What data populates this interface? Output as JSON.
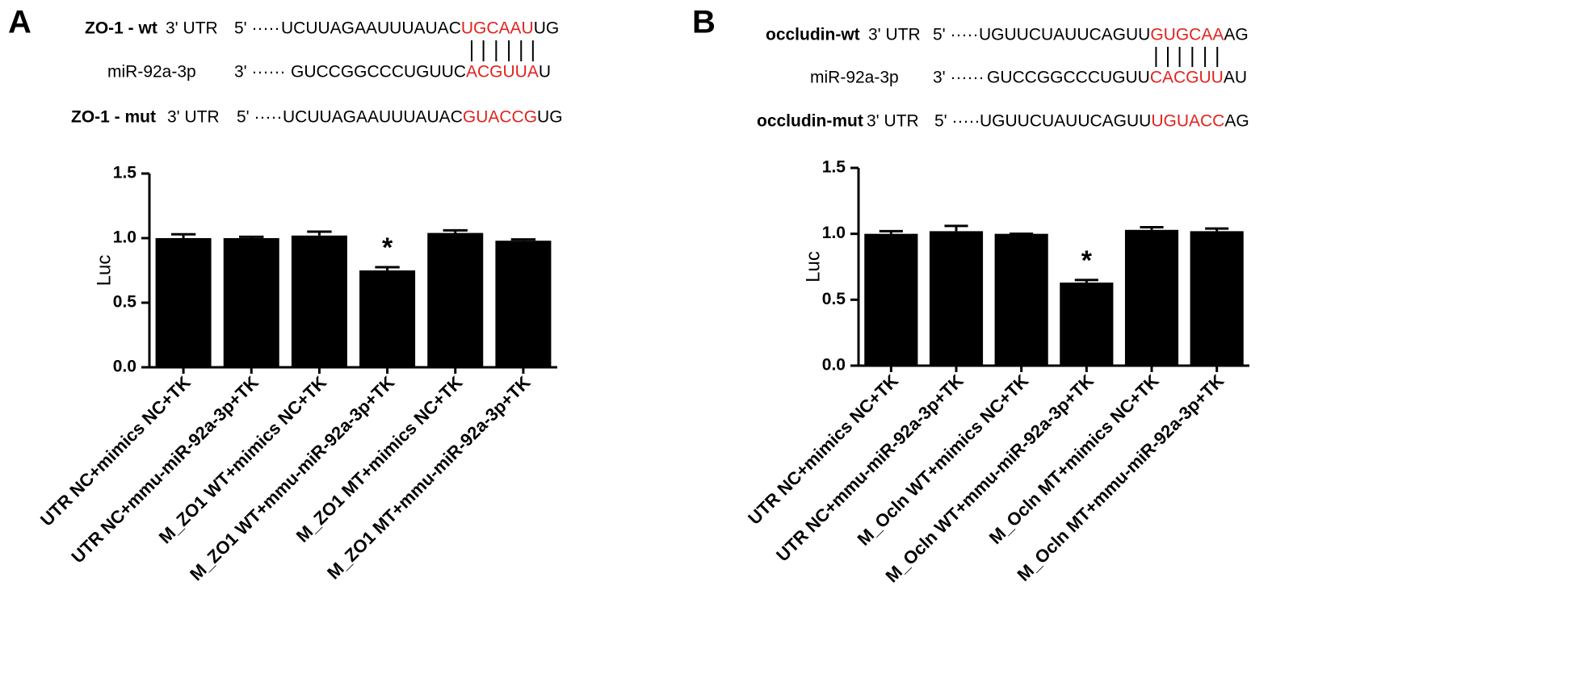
{
  "panels": [
    {
      "label": "A",
      "highlight_color": "#e3231f",
      "rows": [
        {
          "name": "ZO-1 - wt",
          "utr": "3' UTR",
          "end": "5' ·····",
          "seq": "UCUUAGAAUUUAUAC",
          "seed": "UGCAAU",
          "tail": "UG"
        },
        {
          "name": "miR-92a-3p",
          "end": "3' ······",
          "seq": "GUCCGGCCCUGUUC",
          "seed": "ACGUUA",
          "tail": "U"
        },
        {
          "name": "ZO-1 - mut",
          "utr": "3' UTR",
          "end": "5' ·····",
          "seq": "UCUUAGAAUUUAUAC",
          "seed": "GUACCG",
          "tail": "UG"
        }
      ]
    },
    {
      "label": "B",
      "highlight_color": "#e3231f",
      "rows": [
        {
          "name": "occludin-wt",
          "utr": "3' UTR",
          "end": "5' ·····",
          "seq": "UGUUCUAUUCAGUU",
          "seed": "GUGCAA",
          "tail": "AG"
        },
        {
          "name": "miR-92a-3p",
          "end": "3' ······",
          "seq": "GUCCGGCCCUGUU",
          "seed": "CACGUU",
          "tail": "AU"
        },
        {
          "name": "occludin-mut",
          "utr": "3' UTR",
          "end": "5' ·····",
          "seq": "UGUUCUAUUCAGUU",
          "seed": "UGUACC",
          "tail": "AG"
        }
      ]
    }
  ],
  "chart_data": [
    {
      "type": "bar",
      "y_label": "Luc",
      "color": "#000000",
      "categories": [
        "UTR NC+mimics NC+TK",
        "UTR NC+mmu-miR-92a-3p+TK",
        "M_ZO1 WT+mimics NC+TK",
        "M_ZO1 WT+mmu-miR-92a-3p+TK",
        "M_ZO1 MT+mimics NC+TK",
        "M_ZO1 MT+mmu-miR-92a-3p+TK"
      ],
      "values": [
        1.0,
        1.0,
        1.02,
        0.75,
        1.04,
        0.98
      ],
      "errors": [
        0.03,
        0.01,
        0.03,
        0.025,
        0.02,
        0.01
      ],
      "annotations": [
        {
          "text": "*",
          "category": "M_ZO1 WT+mmu-miR-92a-3p+TK"
        }
      ],
      "ylim": [
        0,
        1.5
      ],
      "yticks": [
        {
          "value": 0,
          "label": "0.0"
        },
        0.5,
        {
          "value": 1,
          "label": "1.0"
        },
        1.5
      ]
    },
    {
      "type": "bar",
      "y_label": "Luc",
      "color": "#000000",
      "categories": [
        "UTR NC+mimics NC+TK",
        "UTR NC+mmu-miR-92a-3p+TK",
        "M_Ocln WT+mimics NC+TK",
        "M_Ocln WT+mmu-miR-92a-3p+TK",
        "M_Ocln MT+mimics NC+TK",
        "M_Ocln MT+mmu-miR-92a-3p+TK"
      ],
      "values": [
        1.0,
        1.02,
        1.0,
        0.63,
        1.03,
        1.02
      ],
      "errors": [
        0.02,
        0.04,
        0.0,
        0.02,
        0.02,
        0.02
      ],
      "annotations": [
        {
          "text": "*",
          "category": "M_Ocln WT+mmu-miR-92a-3p+TK"
        }
      ],
      "ylim": [
        0,
        1.5
      ],
      "yticks": [
        {
          "value": 0,
          "label": "0.0"
        },
        0.5,
        {
          "value": 1,
          "label": "1.0"
        },
        1.5
      ]
    }
  ]
}
